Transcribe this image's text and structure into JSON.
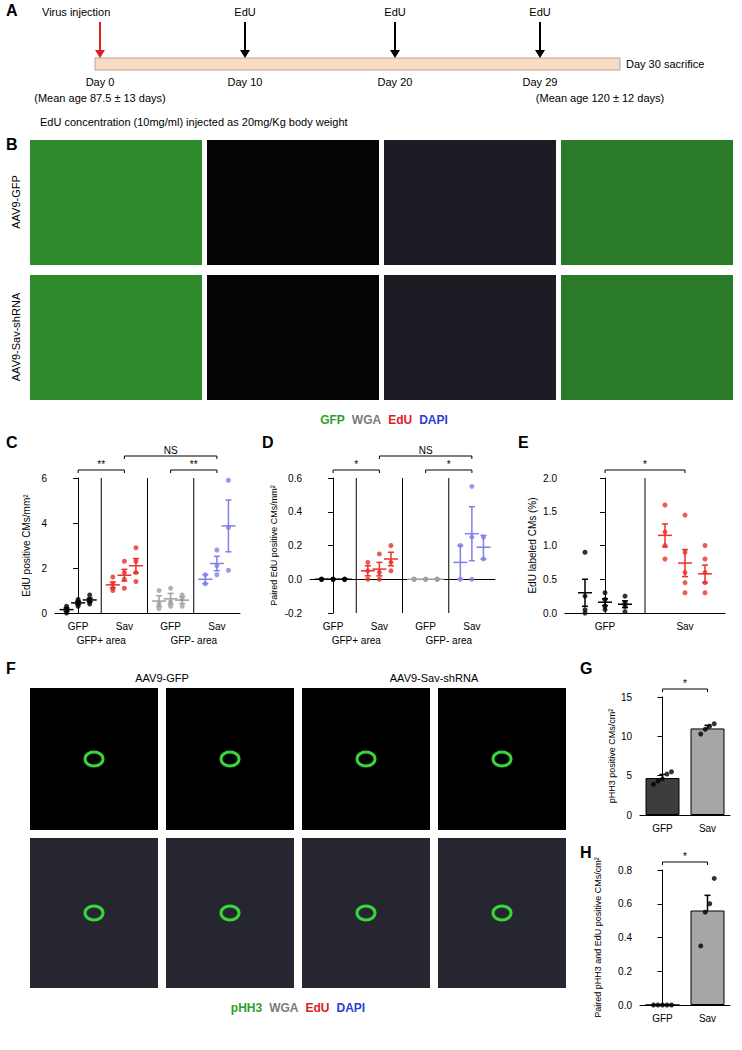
{
  "panels": [
    "A",
    "B",
    "C",
    "D",
    "E",
    "F",
    "G",
    "H"
  ],
  "timeline": {
    "injection": {
      "label": "Virus injection",
      "day": "Day 0",
      "note": "(Mean age 87.5 ± 13 days)"
    },
    "edu": [
      {
        "label": "EdU",
        "day": "Day 10"
      },
      {
        "label": "EdU",
        "day": "Day 20"
      },
      {
        "label": "EdU",
        "day": "Day 29"
      }
    ],
    "end": {
      "label": "Day 30 sacrifice",
      "note": "(Mean age 120 ± 12 days)"
    },
    "footnote": "EdU concentration (10mg/ml) injected as 20mg/Kg body weight"
  },
  "micrographs_b": {
    "rows": [
      "AAV9-GFP",
      "AAV9-Sav-shRNA"
    ],
    "legend": [
      {
        "text": "GFP",
        "color": "#2ea02e"
      },
      {
        "text": "WGA",
        "color": "#7a7a7a"
      },
      {
        "text": "EdU",
        "color": "#e02020"
      },
      {
        "text": "DAPI",
        "color": "#2a3fd4"
      }
    ]
  },
  "micrographs_f": {
    "columns": [
      "AAV9-GFP",
      "AAV9-Sav-shRNA"
    ],
    "legend": [
      {
        "text": "pHH3",
        "color": "#2ea02e"
      },
      {
        "text": "WGA",
        "color": "#7a7a7a"
      },
      {
        "text": "EdU",
        "color": "#e02020"
      },
      {
        "text": "DAPI",
        "color": "#2a3fd4"
      }
    ]
  },
  "chart_data": [
    {
      "type": "scatter",
      "ylabel": "EdU positive CMs/mm²",
      "categories": [
        "GFP",
        "Sav",
        "GFP",
        "Sav"
      ],
      "group_labels": [
        {
          "text": "GFP+ area",
          "categories": [
            0,
            1
          ]
        },
        {
          "text": "GFP- area",
          "categories": [
            2,
            3
          ]
        }
      ],
      "colors": [
        "#000000",
        "#e8312a",
        "#a0a0a0",
        "#8080e8"
      ],
      "points": [
        [
          [
            0,
            0.1,
            0.2,
            0.3
          ],
          [
            0.3,
            0.4,
            0.5,
            0.6
          ],
          [
            0.4,
            0.5,
            0.6,
            0.8
          ]
        ],
        [
          [
            1.0,
            1.1,
            1.3,
            1.6
          ],
          [
            1.1,
            1.5,
            1.8,
            2.3
          ],
          [
            1.4,
            1.8,
            2.3,
            2.9
          ]
        ],
        [
          [
            0.2,
            0.4,
            1.0
          ],
          [
            0.3,
            0.5,
            1.1
          ],
          [
            0.3,
            0.6,
            0.8
          ]
        ],
        [
          [
            1.3,
            1.7
          ],
          [
            1.7,
            2.1,
            2.8
          ],
          [
            1.9,
            3.8,
            5.9
          ]
        ]
      ],
      "means": [
        [
          0.15,
          0.45,
          0.58
        ],
        [
          1.25,
          1.68,
          2.1
        ],
        [
          0.53,
          0.63,
          0.57
        ],
        [
          1.5,
          2.2,
          3.87
        ]
      ],
      "errors": [
        [
          0.07,
          0.07,
          0.08
        ],
        [
          0.13,
          0.26,
          0.32
        ],
        [
          0.24,
          0.24,
          0.15
        ],
        [
          0.2,
          0.32,
          1.15
        ]
      ],
      "ylim": [
        0,
        6
      ],
      "yticks": [
        0,
        2,
        4,
        6
      ],
      "grid": false,
      "comparisons": [
        {
          "groups": [
            0,
            1
          ],
          "text": "**"
        },
        {
          "groups": [
            2,
            3
          ],
          "text": "**"
        },
        {
          "groups": [
            1,
            3
          ],
          "text": "NS"
        }
      ]
    },
    {
      "type": "scatter",
      "ylabel": "Paired EdU positive CMs/mm²",
      "categories": [
        "GFP",
        "Sav",
        "GFP",
        "Sav"
      ],
      "group_labels": [
        {
          "text": "GFP+ area",
          "categories": [
            0,
            1
          ]
        },
        {
          "text": "GFP- area",
          "categories": [
            2,
            3
          ]
        }
      ],
      "colors": [
        "#000000",
        "#e8312a",
        "#a0a0a0",
        "#8080e8"
      ],
      "points": [
        [
          [
            0,
            0,
            0
          ],
          [
            0,
            0,
            0
          ],
          [
            0,
            0,
            0
          ]
        ],
        [
          [
            0,
            0.05,
            0.1
          ],
          [
            0,
            0.04,
            0.15
          ],
          [
            0.05,
            0.1,
            0.2
          ]
        ],
        [
          [
            0,
            0,
            0
          ],
          [
            0,
            0,
            0
          ],
          [
            0,
            0,
            0
          ]
        ],
        [
          [
            0,
            0.2
          ],
          [
            0,
            0.25,
            0.55
          ],
          [
            0.12,
            0.25
          ]
        ]
      ],
      "means": [
        [
          0,
          0,
          0
        ],
        [
          0.05,
          0.06,
          0.12
        ],
        [
          0,
          0,
          0
        ],
        [
          0.1,
          0.27,
          0.19
        ]
      ],
      "errors": [
        [
          0,
          0,
          0
        ],
        [
          0.03,
          0.04,
          0.04
        ],
        [
          0,
          0,
          0
        ],
        [
          0.1,
          0.16,
          0.07
        ]
      ],
      "ylim": [
        -0.2,
        0.6
      ],
      "yticks": [
        -0.2,
        {
          "value": 0,
          "label": "0.0"
        },
        0.2,
        0.4,
        0.6
      ],
      "grid": false,
      "comparisons": [
        {
          "groups": [
            0,
            1
          ],
          "text": "*"
        },
        {
          "groups": [
            2,
            3
          ],
          "text": "*"
        },
        {
          "groups": [
            1,
            3
          ],
          "text": "NS"
        }
      ]
    },
    {
      "type": "scatter",
      "ylabel": "EdU labeled CMs (%)",
      "categories": [
        "GFP",
        "Sav"
      ],
      "colors": [
        "#000000",
        "#e8312a"
      ],
      "points": [
        [
          [
            0,
            0.05,
            0.25,
            0.9
          ],
          [
            0.05,
            0.1,
            0.2,
            0.3
          ],
          [
            0.02,
            0.1,
            0.15,
            0.25
          ]
        ],
        [
          [
            0.8,
            1.0,
            1.2,
            1.6
          ],
          [
            0.3,
            0.45,
            0.6,
            0.9,
            1.45
          ],
          [
            0.3,
            0.45,
            0.6,
            0.8,
            1.0
          ]
        ]
      ],
      "means": [
        [
          0.3,
          0.16,
          0.13
        ],
        [
          1.15,
          0.74,
          0.58
        ]
      ],
      "errors": [
        [
          0.2,
          0.05,
          0.05
        ],
        [
          0.17,
          0.2,
          0.13
        ]
      ],
      "ylim": [
        0,
        2
      ],
      "yticks": [
        {
          "value": 0,
          "label": "0.0"
        },
        0.5,
        {
          "value": 1,
          "label": "1.0"
        },
        1.5,
        {
          "value": 2,
          "label": "2.0"
        }
      ],
      "grid": false,
      "comparisons": [
        {
          "groups": [
            0,
            1
          ],
          "text": "*"
        }
      ]
    },
    {
      "type": "bar",
      "ylabel": "pHH3 positive CMs/cm²",
      "categories": [
        "GFP",
        "Sav"
      ],
      "values": [
        4.7,
        11.0
      ],
      "errors": [
        0.45,
        0.4
      ],
      "colors": [
        "#3d3d3d",
        "#a6a6a6"
      ],
      "points": [
        [
          3.9,
          4.3,
          4.6,
          5.2,
          5.5
        ],
        [
          10.3,
          10.9,
          11.3,
          11.6
        ]
      ],
      "ylim": [
        0,
        15
      ],
      "yticks": [
        0,
        5,
        10,
        15
      ],
      "grid": false,
      "comparisons": [
        {
          "groups": [
            0,
            1
          ],
          "text": "*"
        }
      ]
    },
    {
      "type": "bar",
      "ylabel": "Paired pHH3 and EdU positive CMs/cm²",
      "categories": [
        "GFP",
        "Sav"
      ],
      "values": [
        0,
        0.56
      ],
      "errors": [
        0,
        0.09
      ],
      "colors": [
        "#3d3d3d",
        "#a6a6a6"
      ],
      "points": [
        [
          0,
          0,
          0,
          0,
          0
        ],
        [
          0.35,
          0.55,
          0.6,
          0.75
        ]
      ],
      "ylim": [
        0,
        0.8
      ],
      "yticks": [
        {
          "value": 0,
          "label": "0.0"
        },
        0.2,
        0.4,
        0.6,
        0.8
      ],
      "grid": false,
      "comparisons": [
        {
          "groups": [
            0,
            1
          ],
          "text": "*"
        }
      ]
    }
  ]
}
